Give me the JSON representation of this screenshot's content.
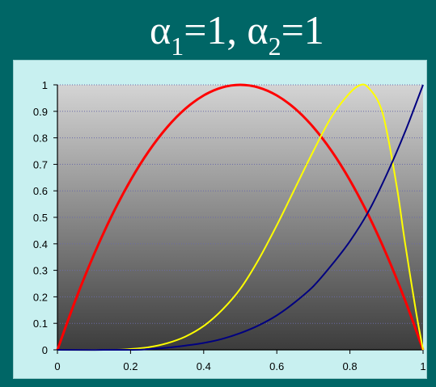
{
  "slide": {
    "title_alpha1": "α",
    "title_sub1": "1",
    "title_mid": "=1, ",
    "title_alpha2": "α",
    "title_sub2": "2",
    "title_end": "=1"
  },
  "colors": {
    "slide_background": "#006666",
    "chart_area": "#c8f0f0",
    "plot_gradient_top": "#d4d4d4",
    "plot_gradient_bottom": "#3c3c3c",
    "gridline": "#6a6aa8"
  },
  "chart_data": {
    "type": "line",
    "title": "",
    "xlabel": "",
    "ylabel": "",
    "xlim": [
      0,
      1
    ],
    "ylim": [
      0,
      1
    ],
    "x_ticks": [
      "0",
      "0.2",
      "0.4",
      "0.6",
      "0.8",
      "1"
    ],
    "y_ticks": [
      "0",
      "0.1",
      "0.2",
      "0.3",
      "0.4",
      "0.5",
      "0.6",
      "0.7",
      "0.8",
      "0.9",
      "1"
    ],
    "grid": "horizontal",
    "series": [
      {
        "color": "#ff0000",
        "x": [
          0,
          0.05,
          0.1,
          0.15,
          0.2,
          0.25,
          0.3,
          0.35,
          0.4,
          0.45,
          0.5,
          0.55,
          0.6,
          0.65,
          0.7,
          0.75,
          0.8,
          0.85,
          0.9,
          0.95,
          1
        ],
        "y": [
          0,
          0.19,
          0.36,
          0.51,
          0.64,
          0.75,
          0.84,
          0.91,
          0.96,
          0.99,
          1,
          0.99,
          0.96,
          0.91,
          0.84,
          0.75,
          0.64,
          0.51,
          0.36,
          0.19,
          0
        ]
      },
      {
        "color": "#ffff00",
        "x": [
          0,
          0.15,
          0.2,
          0.25,
          0.3,
          0.35,
          0.4,
          0.45,
          0.5,
          0.55,
          0.6,
          0.65,
          0.7,
          0.75,
          0.8,
          0.83,
          0.85,
          0.88,
          0.9,
          0.93,
          0.95,
          0.98,
          1
        ],
        "y": [
          0,
          0,
          0.003,
          0.01,
          0.025,
          0.05,
          0.09,
          0.15,
          0.23,
          0.34,
          0.47,
          0.61,
          0.75,
          0.88,
          0.97,
          1,
          0.99,
          0.93,
          0.83,
          0.6,
          0.41,
          0.15,
          0
        ]
      },
      {
        "color": "#000080",
        "x": [
          0,
          0.2,
          0.25,
          0.3,
          0.35,
          0.4,
          0.45,
          0.5,
          0.55,
          0.6,
          0.65,
          0.7,
          0.75,
          0.8,
          0.85,
          0.9,
          0.95,
          1
        ],
        "y": [
          0,
          0,
          0.003,
          0.008,
          0.016,
          0.026,
          0.041,
          0.063,
          0.092,
          0.13,
          0.18,
          0.24,
          0.32,
          0.41,
          0.52,
          0.66,
          0.82,
          1
        ]
      }
    ]
  }
}
